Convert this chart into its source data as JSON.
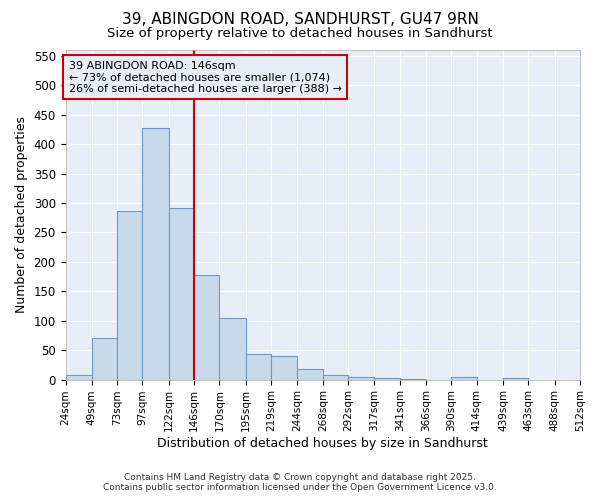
{
  "title": "39, ABINGDON ROAD, SANDHURST, GU47 9RN",
  "subtitle": "Size of property relative to detached houses in Sandhurst",
  "xlabel": "Distribution of detached houses by size in Sandhurst",
  "ylabel": "Number of detached properties",
  "bar_values": [
    7,
    70,
    287,
    428,
    292,
    178,
    105,
    43,
    40,
    18,
    7,
    4,
    2,
    1,
    0,
    4,
    0,
    3
  ],
  "bin_starts": [
    24,
    49,
    73,
    97,
    122,
    146,
    170,
    195,
    219,
    244,
    268,
    292,
    317,
    341,
    366,
    390,
    414,
    439
  ],
  "bin_ends": [
    49,
    73,
    97,
    122,
    146,
    170,
    195,
    219,
    244,
    268,
    292,
    317,
    341,
    366,
    390,
    414,
    439,
    463
  ],
  "bar_color": "#c8daea",
  "bar_edge_color": "#6699cc",
  "vline_x": 146,
  "vline_color": "#cc0000",
  "ylim_max": 560,
  "yticks": [
    0,
    50,
    100,
    150,
    200,
    250,
    300,
    350,
    400,
    450,
    500,
    550
  ],
  "annotation_text": "39 ABINGDON ROAD: 146sqm\n← 73% of detached houses are smaller (1,074)\n26% of semi-detached houses are larger (388) →",
  "all_tick_positions": [
    24,
    49,
    73,
    97,
    122,
    146,
    170,
    195,
    219,
    244,
    268,
    292,
    317,
    341,
    366,
    390,
    414,
    439,
    463,
    488,
    512
  ],
  "all_tick_labels": [
    "24sqm",
    "49sqm",
    "73sqm",
    "97sqm",
    "122sqm",
    "146sqm",
    "170sqm",
    "195sqm",
    "219sqm",
    "244sqm",
    "268sqm",
    "292sqm",
    "317sqm",
    "341sqm",
    "366sqm",
    "390sqm",
    "414sqm",
    "439sqm",
    "463sqm",
    "488sqm",
    "512sqm"
  ],
  "xlim": [
    24,
    512
  ],
  "fig_bg": "#ffffff",
  "ax_bg": "#e8eef8",
  "grid_color": "#ffffff",
  "footer1": "Contains HM Land Registry data © Crown copyright and database right 2025.",
  "footer2": "Contains public sector information licensed under the Open Government Licence v3.0.",
  "title_fontsize": 11,
  "subtitle_fontsize": 9.5,
  "ylabel_fontsize": 9,
  "xlabel_fontsize": 9,
  "footer_fontsize": 6.5,
  "ytick_fontsize": 8.5,
  "xtick_fontsize": 7.5
}
